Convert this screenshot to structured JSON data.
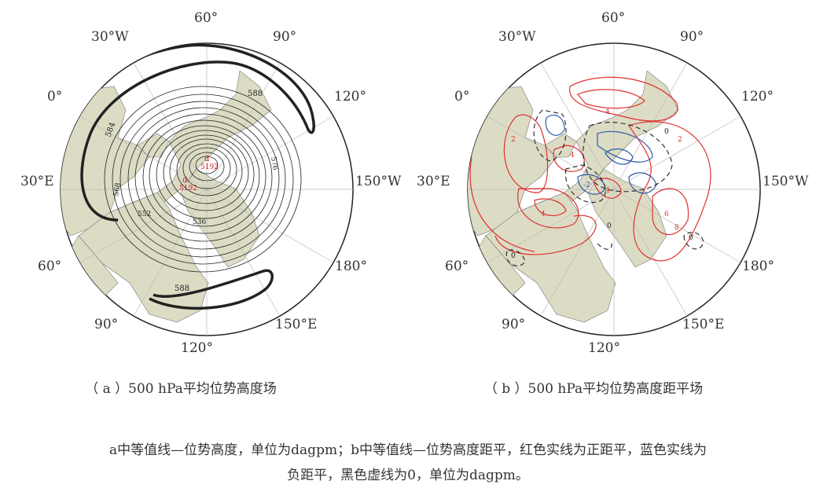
{
  "panel_a": {
    "caption": "（ a ）500 hPa平均位势高度场",
    "longitude_labels": [
      "60°",
      "90°",
      "120°",
      "150°W",
      "180°",
      "150°E",
      "120°",
      "90°",
      "60°",
      "30°E",
      "0°",
      "30°W"
    ],
    "contour_labels": [
      "588",
      "584",
      "576",
      "584",
      "568",
      "560",
      "552",
      "544",
      "536",
      "528",
      "520",
      "512",
      "508",
      "588"
    ],
    "center_labels": [
      "d",
      "5192",
      "d",
      "5192"
    ],
    "colors": {
      "land": "#dcdcc4",
      "ocean": "#ffffff",
      "contour": "#222222"
    }
  },
  "panel_b": {
    "caption": "（ b ）500 hPa平均位势高度距平场",
    "longitude_labels": [
      "60°",
      "90°",
      "120°",
      "150°W",
      "180°",
      "150°E",
      "120°",
      "90°",
      "60°",
      "30°E",
      "0°",
      "30°W"
    ],
    "contour_labels": [
      "4",
      "2",
      "4",
      "6",
      "8",
      "4",
      "2",
      "4",
      "6",
      "-2",
      "0",
      "0",
      "0",
      "0"
    ],
    "colors": {
      "positive": "#e03030",
      "negative": "#2a5aa8",
      "zero": "#222222",
      "land": "#dcdcc4"
    }
  },
  "note": {
    "line1": "a中等值线—位势高度，单位为dagpm；b中等值线—位势高度距平，红色实线为正距平，蓝色实线为",
    "line2": "负距平，黑色虚线为0，单位为dagpm。"
  }
}
